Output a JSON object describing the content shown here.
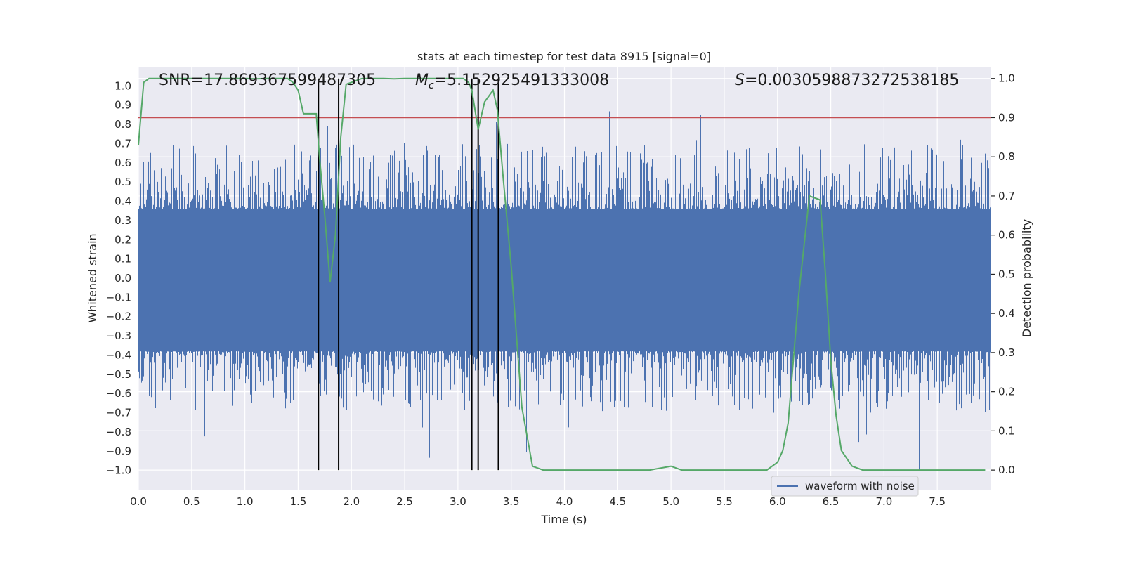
{
  "chart_data": {
    "type": "line",
    "title": "stats at each timestep for test data 8915 [signal=0]",
    "xlabel": "Time (s)",
    "ylabel": "Whitened strain",
    "y2label": "Detection probability",
    "xlim": [
      0,
      8
    ],
    "ylim": [
      -1.1,
      1.1
    ],
    "y2lim": [
      -0.05,
      1.03
    ],
    "x_ticks": [
      "0.0",
      "0.5",
      "1.0",
      "1.5",
      "2.0",
      "2.5",
      "3.0",
      "3.5",
      "4.0",
      "4.5",
      "5.0",
      "5.5",
      "6.0",
      "6.5",
      "7.0",
      "7.5"
    ],
    "y_ticks": [
      "1.0",
      "0.9",
      "0.8",
      "0.7",
      "0.6",
      "0.5",
      "0.4",
      "0.3",
      "0.2",
      "0.1",
      "0.0",
      "−0.1",
      "−0.2",
      "−0.3",
      "−0.4",
      "−0.5",
      "−0.6",
      "−0.7",
      "−0.8",
      "−0.9",
      "−1.0"
    ],
    "y2_ticks": [
      "1.0",
      "0.9",
      "0.8",
      "0.7",
      "0.6",
      "0.5",
      "0.4",
      "0.3",
      "0.2",
      "0.1",
      "0.0"
    ],
    "annotations": {
      "snr": "SNR=17.869367599487305",
      "mc_symbol": "M",
      "mc_sub": "c",
      "mc_value": "=5.152925491333008",
      "s_symbol": "S",
      "s_value": "=0.0030598873272538185"
    },
    "threshold": 0.9,
    "vertical_lines_x": [
      1.69,
      1.88,
      3.13,
      3.19,
      3.38
    ],
    "series": [
      {
        "name": "waveform with noise",
        "color": "#4c72b0",
        "description": "whitened strain noise, dense band approx -0.4..0.38 with spikes to +/-1.0"
      },
      {
        "name": "detection probability",
        "color": "#55a868",
        "axis": "right",
        "x": [
          0.0,
          0.05,
          0.1,
          0.2,
          0.3,
          0.5,
          0.7,
          0.9,
          1.0,
          1.1,
          1.2,
          1.3,
          1.4,
          1.45,
          1.5,
          1.55,
          1.62,
          1.67,
          1.7,
          1.75,
          1.8,
          1.85,
          1.9,
          1.95,
          2.0,
          2.05,
          2.1,
          2.2,
          2.3,
          2.4,
          2.5,
          2.6,
          2.7,
          2.8,
          2.9,
          3.0,
          3.05,
          3.1,
          3.13,
          3.19,
          3.25,
          3.33,
          3.37,
          3.42,
          3.5,
          3.6,
          3.7,
          3.8,
          3.9,
          4.0,
          4.2,
          4.4,
          4.6,
          4.8,
          5.0,
          5.1,
          5.3,
          5.5,
          5.7,
          5.9,
          6.0,
          6.05,
          6.1,
          6.2,
          6.3,
          6.4,
          6.45,
          6.5,
          6.55,
          6.6,
          6.7,
          6.8,
          7.0,
          7.2,
          7.4,
          7.6,
          7.8,
          7.95
        ],
        "values": [
          0.83,
          0.99,
          1.0,
          1.0,
          1.0,
          1.0,
          1.0,
          1.0,
          1.0,
          0.999,
          1.0,
          1.0,
          1.0,
          0.99,
          0.97,
          0.91,
          0.91,
          0.91,
          0.8,
          0.65,
          0.48,
          0.6,
          0.85,
          0.985,
          0.99,
          0.995,
          1.0,
          1.0,
          1.0,
          0.999,
          1.0,
          1.0,
          1.0,
          1.0,
          1.0,
          1.0,
          1.0,
          0.99,
          0.97,
          0.87,
          0.94,
          0.97,
          0.92,
          0.76,
          0.52,
          0.16,
          0.01,
          0.0,
          0.0,
          0.0,
          0.0,
          0.0,
          0.0,
          0.0,
          0.01,
          0.0,
          0.0,
          0.0,
          0.0,
          0.0,
          0.02,
          0.05,
          0.12,
          0.45,
          0.7,
          0.69,
          0.5,
          0.28,
          0.14,
          0.05,
          0.01,
          0.0,
          0.0,
          0.0,
          0.0,
          0.0,
          0.0,
          0.0
        ]
      }
    ],
    "legend": {
      "label": "waveform with noise",
      "placement": "lower-right"
    }
  }
}
